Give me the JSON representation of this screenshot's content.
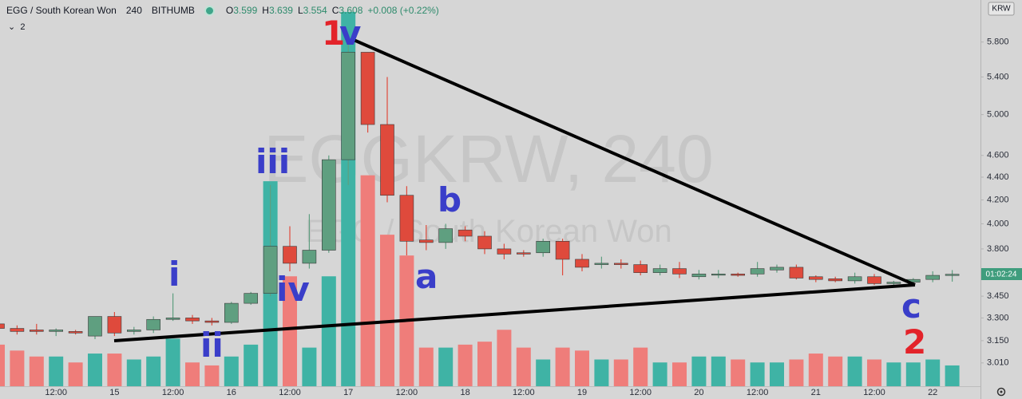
{
  "header": {
    "symbol": "EGG / South Korean Won",
    "interval": "240",
    "exchange": "BITHUMB",
    "ohlc": [
      {
        "key": "O",
        "value": "3.599"
      },
      {
        "key": "H",
        "value": "3.639"
      },
      {
        "key": "L",
        "value": "3.554"
      },
      {
        "key": "C",
        "value": "3.608"
      }
    ],
    "change": "+0.008 (+0.22%)",
    "indicator_count": "2"
  },
  "watermark": {
    "line1": "EGGKRW, 240",
    "line2": "EGG / South Korean Won"
  },
  "chart_data": {
    "type": "candlestick",
    "categories": [
      null,
      null,
      null,
      "12:00",
      null,
      null,
      "15",
      null,
      null,
      "12:00",
      null,
      null,
      "16",
      null,
      null,
      "12:00",
      null,
      null,
      "17",
      null,
      null,
      "12:00",
      null,
      null,
      "18",
      null,
      null,
      "12:00",
      null,
      null,
      "19",
      null,
      null,
      "12:00",
      null,
      null,
      "20",
      null,
      null,
      "12:00",
      null,
      null,
      "21",
      null,
      null,
      "12:00",
      null,
      null,
      "22",
      null
    ],
    "open": [
      3.26,
      3.23,
      3.22,
      3.21,
      3.21,
      3.18,
      3.31,
      3.21,
      3.22,
      3.29,
      3.3,
      3.28,
      3.27,
      3.4,
      3.47,
      3.82,
      3.69,
      3.79,
      4.56,
      5.68,
      4.9,
      4.24,
      3.87,
      3.85,
      3.95,
      3.9,
      3.8,
      3.77,
      3.77,
      3.86,
      3.72,
      3.68,
      3.69,
      3.68,
      3.62,
      3.65,
      3.59,
      3.605,
      3.61,
      3.61,
      3.64,
      3.66,
      3.59,
      3.575,
      3.56,
      3.59,
      3.54,
      3.55,
      3.57,
      3.599
    ],
    "high": [
      3.27,
      3.25,
      3.26,
      3.23,
      3.22,
      3.31,
      3.34,
      3.24,
      3.31,
      3.47,
      3.32,
      3.3,
      3.41,
      3.48,
      4.33,
      3.98,
      4.08,
      4.6,
      5.82,
      5.68,
      5.4,
      4.32,
      3.99,
      4.0,
      3.98,
      3.94,
      3.84,
      3.79,
      3.88,
      3.88,
      3.76,
      3.74,
      3.72,
      3.71,
      3.68,
      3.7,
      3.64,
      3.64,
      3.62,
      3.7,
      3.68,
      3.68,
      3.6,
      3.59,
      3.62,
      3.61,
      3.56,
      3.58,
      3.63,
      3.639
    ],
    "low": [
      3.22,
      3.19,
      3.19,
      3.18,
      3.19,
      3.16,
      3.18,
      3.19,
      3.2,
      3.28,
      3.26,
      3.25,
      3.26,
      3.39,
      3.45,
      3.63,
      3.65,
      3.77,
      4.33,
      4.82,
      4.18,
      3.75,
      3.79,
      3.8,
      3.86,
      3.76,
      3.72,
      3.74,
      3.74,
      3.6,
      3.63,
      3.65,
      3.65,
      3.6,
      3.6,
      3.58,
      3.57,
      3.58,
      3.59,
      3.59,
      3.62,
      3.57,
      3.55,
      3.55,
      3.54,
      3.53,
      3.53,
      3.54,
      3.55,
      3.554
    ],
    "close": [
      3.23,
      3.21,
      3.21,
      3.22,
      3.2,
      3.31,
      3.2,
      3.22,
      3.29,
      3.3,
      3.28,
      3.27,
      3.4,
      3.47,
      3.82,
      3.69,
      3.79,
      4.56,
      5.68,
      4.9,
      4.24,
      3.86,
      3.85,
      3.96,
      3.9,
      3.8,
      3.76,
      3.76,
      3.86,
      3.72,
      3.66,
      3.69,
      3.68,
      3.62,
      3.65,
      3.61,
      3.61,
      3.61,
      3.6,
      3.65,
      3.66,
      3.58,
      3.57,
      3.56,
      3.59,
      3.54,
      3.55,
      3.57,
      3.6,
      3.608
    ],
    "volume": [
      14,
      12,
      10,
      10,
      8,
      11,
      11,
      9,
      10,
      16,
      8,
      7,
      10,
      14,
      69,
      37,
      13,
      37,
      126,
      71,
      51,
      44,
      13,
      13,
      14,
      15,
      19,
      13,
      9,
      13,
      12,
      9,
      9,
      13,
      8,
      8,
      10,
      10,
      9,
      8,
      8,
      9,
      11,
      10,
      10,
      9,
      8,
      8,
      9,
      7
    ],
    "volume_ylim": [
      0,
      130
    ],
    "up_color": "#5f9f80",
    "down_color": "#df4a3c",
    "volume_up_color": "#3fb3a5",
    "volume_down_color": "#ef7d7a",
    "ylim": [
      2.87,
      6.32
    ],
    "log_scale": true,
    "yticks": [
      {
        "value": 5.8,
        "label": "5.800"
      },
      {
        "value": 5.4,
        "label": "5.400"
      },
      {
        "value": 5.0,
        "label": "5.000"
      },
      {
        "value": 4.6,
        "label": "4.600"
      },
      {
        "value": 4.4,
        "label": "4.400"
      },
      {
        "value": 4.2,
        "label": "4.200"
      },
      {
        "value": 4.0,
        "label": "4.000"
      },
      {
        "value": 3.8,
        "label": "3.800"
      },
      {
        "value": 3.45,
        "label": "3.450"
      },
      {
        "value": 3.3,
        "label": "3.300"
      },
      {
        "value": 3.15,
        "label": "3.150"
      },
      {
        "value": 3.01,
        "label": "3.010"
      }
    ],
    "currency": "KRW",
    "countdown": "01:02:24",
    "annotations": [
      "1",
      "v",
      "i",
      "ii",
      "iii",
      "iv",
      "a",
      "b",
      "c",
      "2"
    ]
  }
}
